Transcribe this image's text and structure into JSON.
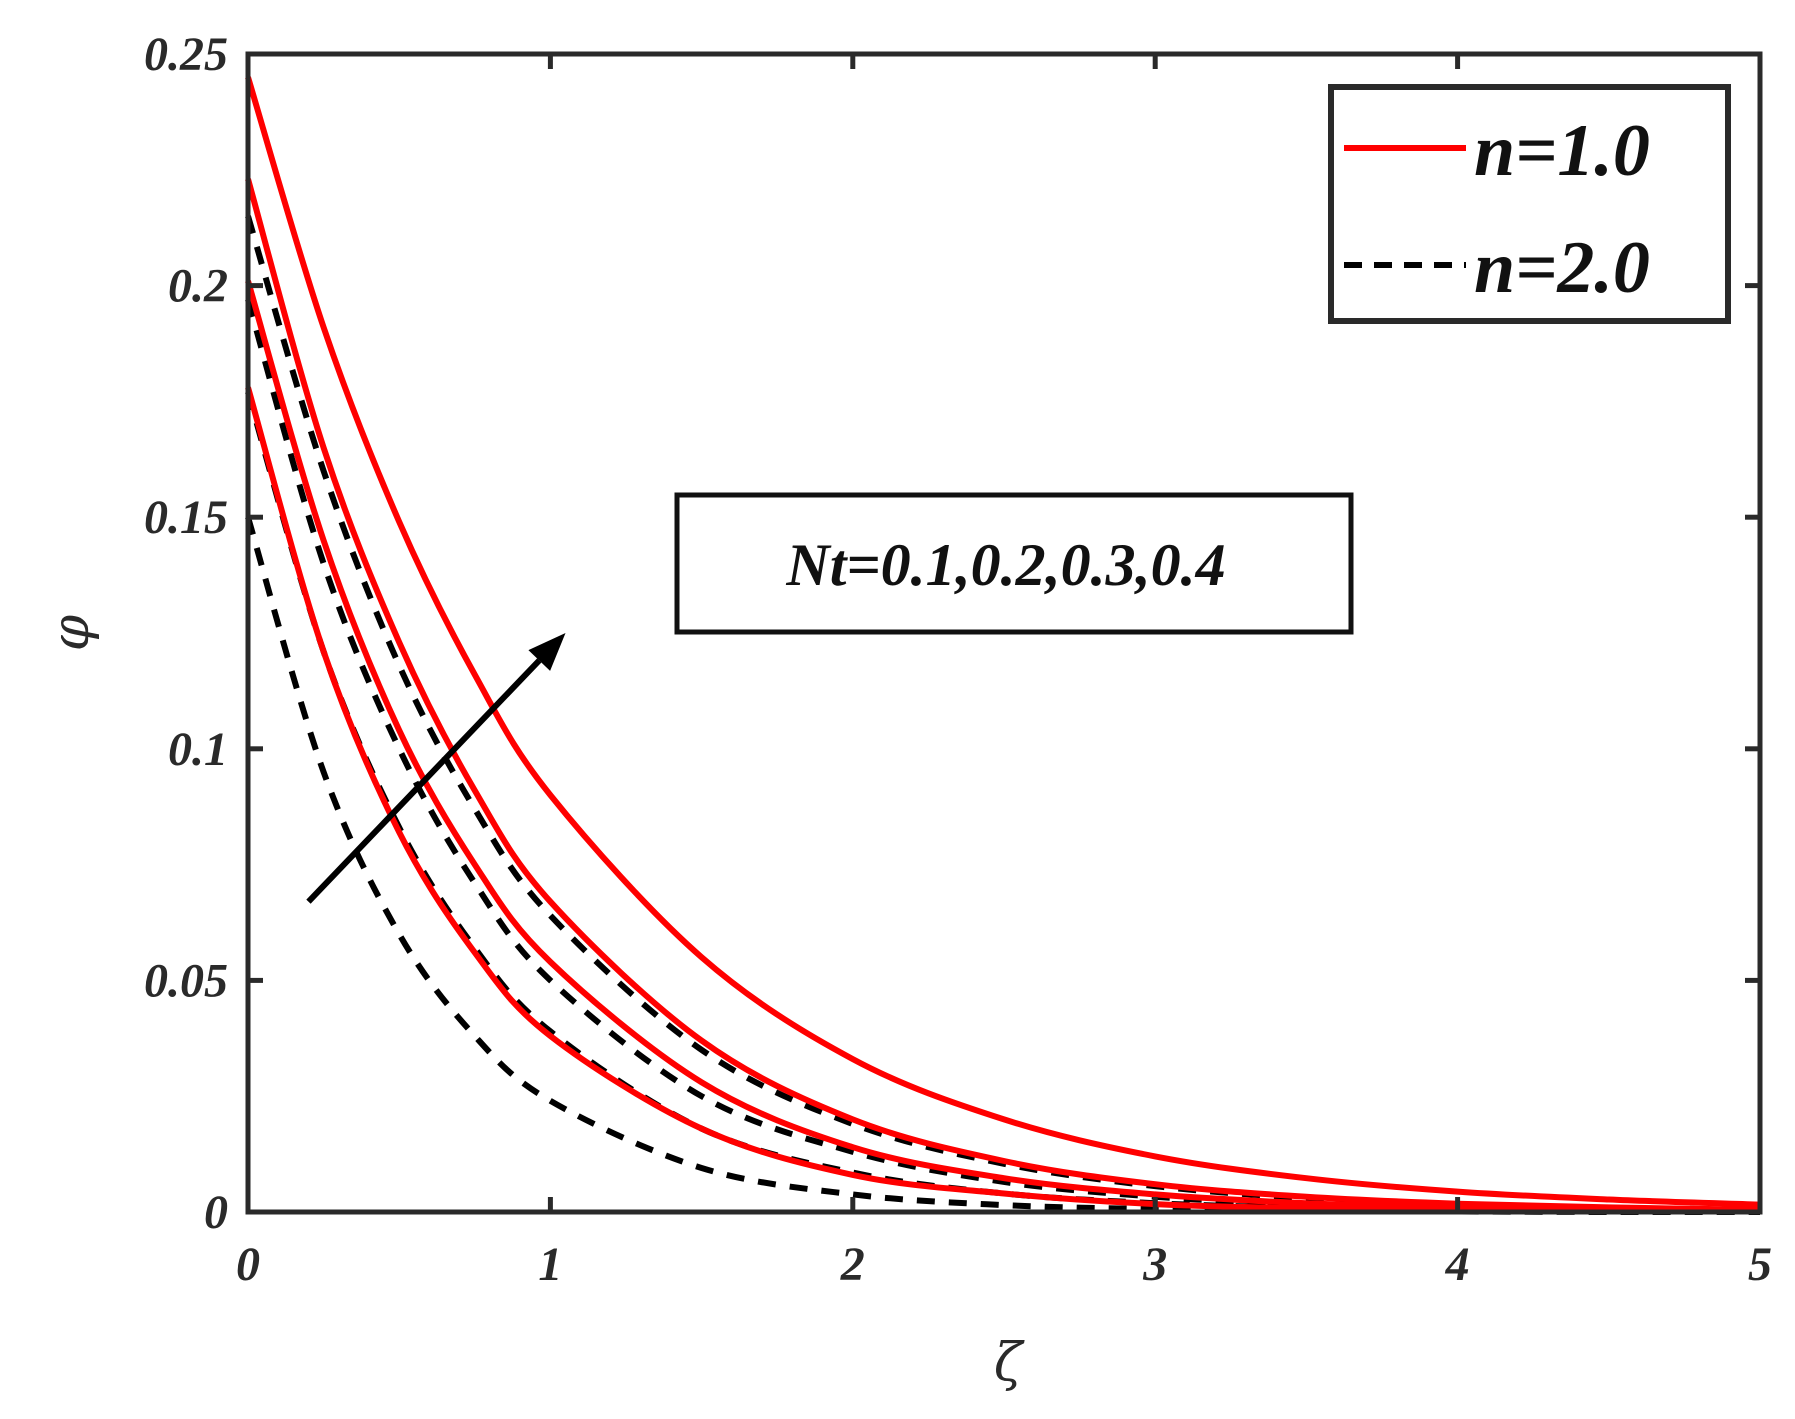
{
  "chart_data": {
    "type": "line",
    "title": "",
    "xlabel": "ζ",
    "ylabel": "φ",
    "xlim": [
      0,
      5
    ],
    "ylim": [
      0,
      0.25
    ],
    "xticks": [
      0,
      1,
      2,
      3,
      4,
      5
    ],
    "xtick_labels": [
      "0",
      "1",
      "2",
      "3",
      "4",
      "5"
    ],
    "yticks": [
      0,
      0.05,
      0.1,
      0.15,
      0.2,
      0.25
    ],
    "ytick_labels": [
      "0",
      "0.05",
      "0.1",
      "0.15",
      "0.2",
      "0.25"
    ],
    "grid": false,
    "legend": {
      "placement": "top-right",
      "entries": [
        {
          "label": "n=1.0",
          "color": "#ff0000",
          "style": "solid"
        },
        {
          "label": "n=2.0",
          "color": "#000000",
          "style": "dashed"
        }
      ]
    },
    "annotation": {
      "text": "Nt=0.1,0.2,0.3,0.4",
      "arrow": {
        "from": [
          0.2,
          0.067
        ],
        "to": [
          1.05,
          0.125
        ]
      }
    },
    "x": [
      0,
      0.25,
      0.5,
      0.75,
      1,
      1.5,
      2,
      2.5,
      3,
      3.5,
      4,
      4.5,
      5
    ],
    "series": [
      {
        "group": "n=1.0",
        "nt": 0.1,
        "values": [
          0.178,
          0.121,
          0.082,
          0.056,
          0.038,
          0.018,
          0.008,
          0.004,
          0.0017,
          0.0008,
          0.0004,
          0.0002,
          0.0001
        ]
      },
      {
        "group": "n=1.0",
        "nt": 0.2,
        "values": [
          0.201,
          0.145,
          0.104,
          0.075,
          0.054,
          0.028,
          0.014,
          0.0073,
          0.0038,
          0.0019,
          0.001,
          0.0005,
          0.0003
        ]
      },
      {
        "group": "n=1.0",
        "nt": 0.3,
        "values": [
          0.223,
          0.165,
          0.123,
          0.091,
          0.067,
          0.037,
          0.02,
          0.011,
          0.006,
          0.0033,
          0.0018,
          0.001,
          0.0005
        ]
      },
      {
        "group": "n=1.0",
        "nt": 0.4,
        "values": [
          0.245,
          0.191,
          0.149,
          0.116,
          0.09,
          0.055,
          0.033,
          0.02,
          0.012,
          0.0073,
          0.0044,
          0.0027,
          0.0016
        ]
      },
      {
        "group": "n=2.0",
        "nt": 0.1,
        "values": [
          0.15,
          0.095,
          0.06,
          0.038,
          0.024,
          0.0095,
          0.0038,
          0.0015,
          0.0006,
          0.0002,
          0.0001,
          0,
          0
        ]
      },
      {
        "group": "n=2.0",
        "nt": 0.2,
        "values": [
          0.177,
          0.121,
          0.083,
          0.057,
          0.039,
          0.018,
          0.0085,
          0.004,
          0.0019,
          0.0009,
          0.0004,
          0.0002,
          0.0001
        ]
      },
      {
        "group": "n=2.0",
        "nt": 0.3,
        "values": [
          0.197,
          0.14,
          0.1,
          0.071,
          0.05,
          0.025,
          0.013,
          0.0065,
          0.0033,
          0.0016,
          0.0008,
          0.0004,
          0.0002
        ]
      },
      {
        "group": "n=2.0",
        "nt": 0.4,
        "values": [
          0.215,
          0.16,
          0.118,
          0.087,
          0.064,
          0.035,
          0.019,
          0.0104,
          0.0056,
          0.003,
          0.0016,
          0.0009,
          0.0005
        ]
      }
    ]
  }
}
